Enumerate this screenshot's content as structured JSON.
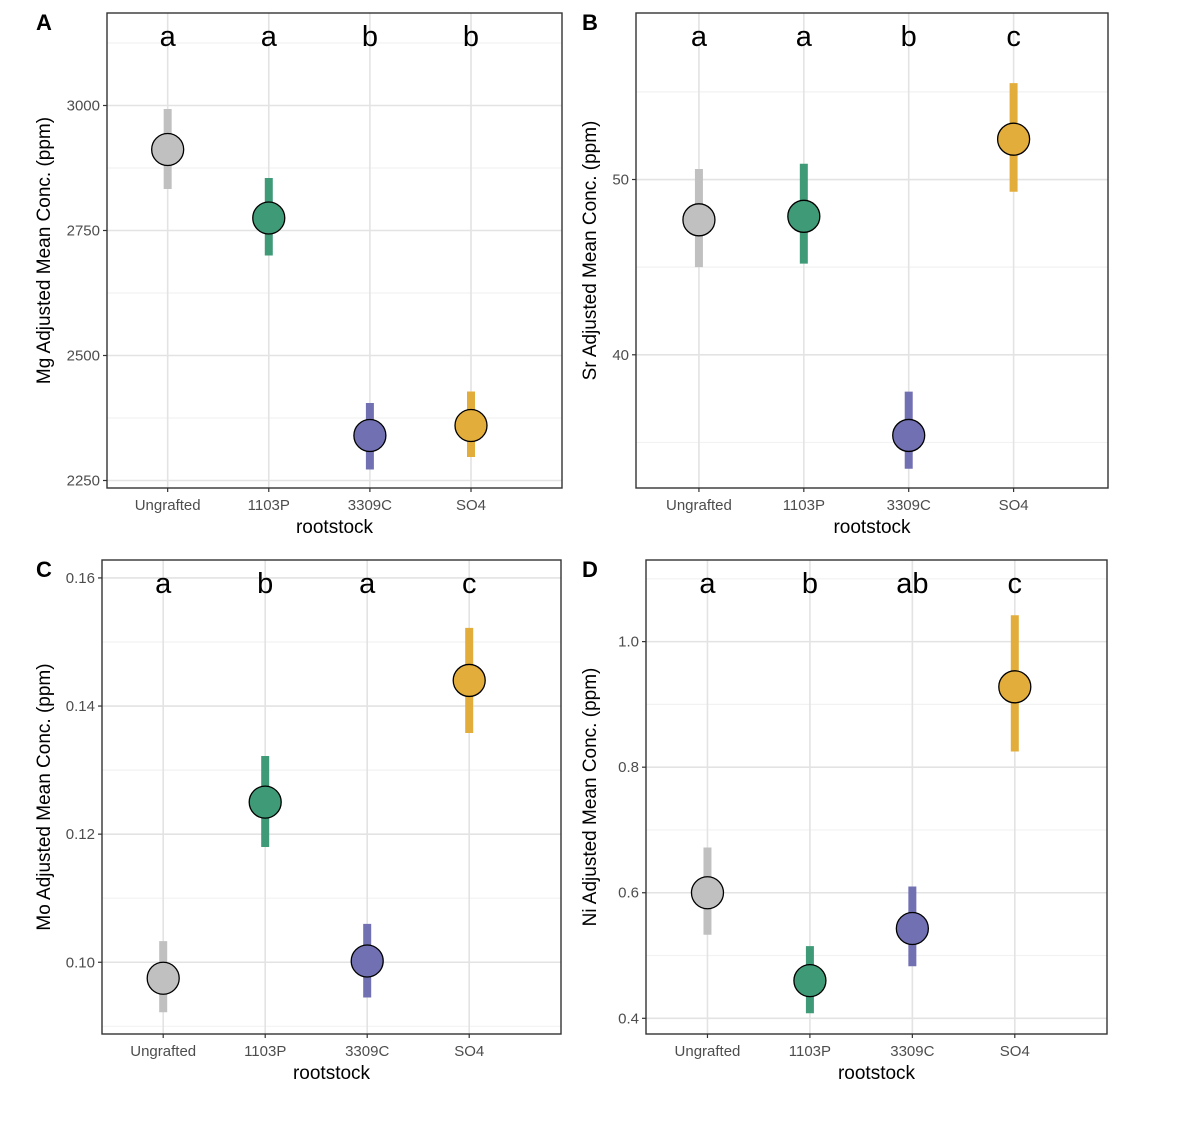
{
  "colors": {
    "Ungrafted": "#c0c0c0",
    "1103P": "#3f9a77",
    "3309C": "#7170b3",
    "SO4": "#e3ad3b",
    "grid_major": "#e3e3e3",
    "grid_minor": "#f2f2f2",
    "frame": "#333333",
    "point_outline": "#000000"
  },
  "chart_data": [
    {
      "panel_label": "A",
      "type": "scatter",
      "xlabel": "rootstock",
      "ylabel": "Mg Adjusted Mean Conc. (ppm)",
      "categories": [
        "Ungrafted",
        "1103P",
        "3309C",
        "SO4"
      ],
      "values": [
        2912,
        2775,
        2340,
        2360
      ],
      "lower": [
        2833,
        2700,
        2272,
        2297
      ],
      "upper": [
        2993,
        2855,
        2405,
        2428
      ],
      "letters": [
        "a",
        "a",
        "b",
        "b"
      ],
      "yticks": [
        2250,
        2500,
        2750,
        3000
      ],
      "ytick_labels": [
        "2250",
        "2500",
        "2750",
        "3000"
      ],
      "ylim": [
        2235,
        3185
      ],
      "grid": true,
      "legend": "none"
    },
    {
      "panel_label": "B",
      "type": "scatter",
      "xlabel": "rootstock",
      "ylabel": "Sr Adjusted Mean Conc. (ppm)",
      "categories": [
        "Ungrafted",
        "1103P",
        "3309C",
        "SO4"
      ],
      "values": [
        47.7,
        47.9,
        35.4,
        52.3
      ],
      "lower": [
        45.0,
        45.2,
        33.5,
        49.3
      ],
      "upper": [
        50.6,
        50.9,
        37.9,
        55.5
      ],
      "letters": [
        "a",
        "a",
        "b",
        "c"
      ],
      "yticks": [
        40,
        50
      ],
      "ytick_labels": [
        "40",
        "50"
      ],
      "ylim": [
        32.4,
        59.5
      ],
      "grid": true,
      "legend": "none"
    },
    {
      "panel_label": "C",
      "type": "scatter",
      "xlabel": "rootstock",
      "ylabel": "Mo Adjusted Mean Conc. (ppm)",
      "categories": [
        "Ungrafted",
        "1103P",
        "3309C",
        "SO4"
      ],
      "values": [
        0.0975,
        0.125,
        0.1002,
        0.144
      ],
      "lower": [
        0.0922,
        0.118,
        0.0945,
        0.1358
      ],
      "upper": [
        0.1033,
        0.1322,
        0.106,
        0.1522
      ],
      "letters": [
        "a",
        "b",
        "a",
        "c"
      ],
      "yticks": [
        0.1,
        0.12,
        0.14,
        0.16
      ],
      "ytick_labels": [
        "0.10",
        "0.12",
        "0.14",
        "0.16"
      ],
      "ylim": [
        0.0888,
        0.1628
      ],
      "grid": true,
      "legend": "none"
    },
    {
      "panel_label": "D",
      "type": "scatter",
      "xlabel": "rootstock",
      "ylabel": "Ni Adjusted Mean Conc. (ppm)",
      "categories": [
        "Ungrafted",
        "1103P",
        "3309C",
        "SO4"
      ],
      "values": [
        0.6,
        0.46,
        0.543,
        0.928
      ],
      "lower": [
        0.533,
        0.408,
        0.483,
        0.825
      ],
      "upper": [
        0.672,
        0.515,
        0.61,
        1.042
      ],
      "letters": [
        "a",
        "b",
        "ab",
        "c"
      ],
      "yticks": [
        0.4,
        0.6,
        0.8,
        1.0
      ],
      "ytick_labels": [
        "0.4",
        "0.6",
        "0.8",
        "1.0"
      ],
      "ylim": [
        0.375,
        1.13
      ],
      "grid": true,
      "legend": "none"
    }
  ]
}
